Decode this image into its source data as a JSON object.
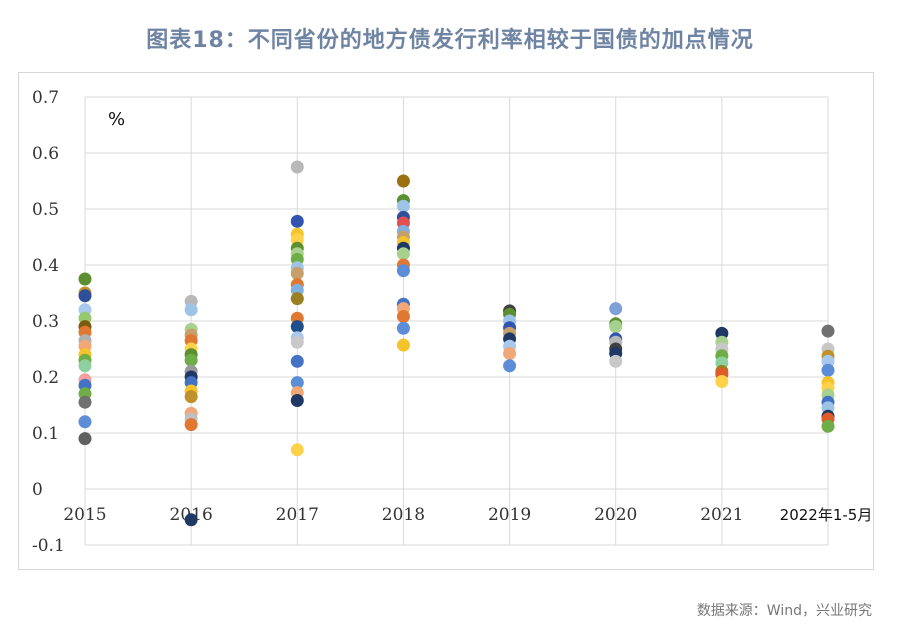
{
  "title": "图表18：不同省份的地方债发行利率相较于国债的加点情况",
  "source": "数据来源：Wind，兴业研究",
  "chart_data": {
    "type": "scatter",
    "unit_label": "%",
    "categories": [
      "2015",
      "2016",
      "2017",
      "2018",
      "2019",
      "2020",
      "2021",
      "2022年1-5月"
    ],
    "y_ticks": [
      "0.7",
      "0.6",
      "0.5",
      "0.4",
      "0.3",
      "0.2",
      "0.1",
      "0",
      "-0.1"
    ],
    "ylim": [
      -0.1,
      0.7
    ],
    "grid": true,
    "points": [
      {
        "x": "2015",
        "y": 0.375,
        "color": "#5b8f2f"
      },
      {
        "x": "2015",
        "y": 0.35,
        "color": "#c0902a"
      },
      {
        "x": "2015",
        "y": 0.345,
        "color": "#2f4f9a"
      },
      {
        "x": "2015",
        "y": 0.32,
        "color": "#a9c8ee"
      },
      {
        "x": "2015",
        "y": 0.305,
        "color": "#98c870"
      },
      {
        "x": "2015",
        "y": 0.29,
        "color": "#7a5c0e"
      },
      {
        "x": "2015",
        "y": 0.28,
        "color": "#e07832"
      },
      {
        "x": "2015",
        "y": 0.265,
        "color": "#b0b0b0"
      },
      {
        "x": "2015",
        "y": 0.255,
        "color": "#f0a878"
      },
      {
        "x": "2015",
        "y": 0.24,
        "color": "#f5c32a"
      },
      {
        "x": "2015",
        "y": 0.23,
        "color": "#70ad47"
      },
      {
        "x": "2015",
        "y": 0.22,
        "color": "#8fd0a0"
      },
      {
        "x": "2015",
        "y": 0.195,
        "color": "#f5a0a0"
      },
      {
        "x": "2015",
        "y": 0.185,
        "color": "#4472c4"
      },
      {
        "x": "2015",
        "y": 0.17,
        "color": "#70ad47"
      },
      {
        "x": "2015",
        "y": 0.155,
        "color": "#707070"
      },
      {
        "x": "2015",
        "y": 0.12,
        "color": "#5b8ed6"
      },
      {
        "x": "2015",
        "y": 0.09,
        "color": "#606060"
      },
      {
        "x": "2016",
        "y": 0.335,
        "color": "#b8b8b8"
      },
      {
        "x": "2016",
        "y": 0.32,
        "color": "#9dc3e6"
      },
      {
        "x": "2016",
        "y": 0.285,
        "color": "#a9d18e"
      },
      {
        "x": "2016",
        "y": 0.275,
        "color": "#c5a06a"
      },
      {
        "x": "2016",
        "y": 0.265,
        "color": "#e07832"
      },
      {
        "x": "2016",
        "y": 0.25,
        "color": "#ffd24a"
      },
      {
        "x": "2016",
        "y": 0.24,
        "color": "#5b8f2f"
      },
      {
        "x": "2016",
        "y": 0.23,
        "color": "#70ad47"
      },
      {
        "x": "2016",
        "y": 0.21,
        "color": "#9a9a9a"
      },
      {
        "x": "2016",
        "y": 0.2,
        "color": "#1f3864"
      },
      {
        "x": "2016",
        "y": 0.19,
        "color": "#4472c4"
      },
      {
        "x": "2016",
        "y": 0.175,
        "color": "#f5c32a"
      },
      {
        "x": "2016",
        "y": 0.165,
        "color": "#c0902a"
      },
      {
        "x": "2016",
        "y": 0.135,
        "color": "#f0a878"
      },
      {
        "x": "2016",
        "y": 0.125,
        "color": "#c0c0c0"
      },
      {
        "x": "2016",
        "y": 0.115,
        "color": "#e07832"
      },
      {
        "x": "2016",
        "y": -0.055,
        "color": "#1f3864"
      },
      {
        "x": "2017",
        "y": 0.575,
        "color": "#b8b8b8"
      },
      {
        "x": "2017",
        "y": 0.478,
        "color": "#2f55b0"
      },
      {
        "x": "2017",
        "y": 0.455,
        "color": "#f5c32a"
      },
      {
        "x": "2017",
        "y": 0.445,
        "color": "#ffd24a"
      },
      {
        "x": "2017",
        "y": 0.43,
        "color": "#5b8f2f"
      },
      {
        "x": "2017",
        "y": 0.42,
        "color": "#a9d18e"
      },
      {
        "x": "2017",
        "y": 0.41,
        "color": "#70ad47"
      },
      {
        "x": "2017",
        "y": 0.395,
        "color": "#9dc3e6"
      },
      {
        "x": "2017",
        "y": 0.385,
        "color": "#c5a06a"
      },
      {
        "x": "2017",
        "y": 0.365,
        "color": "#e07832"
      },
      {
        "x": "2017",
        "y": 0.355,
        "color": "#7fb0e0"
      },
      {
        "x": "2017",
        "y": 0.34,
        "color": "#9a8020"
      },
      {
        "x": "2017",
        "y": 0.305,
        "color": "#e07832"
      },
      {
        "x": "2017",
        "y": 0.29,
        "color": "#1f4e8c"
      },
      {
        "x": "2017",
        "y": 0.27,
        "color": "#a9c8ee"
      },
      {
        "x": "2017",
        "y": 0.262,
        "color": "#c8c8c8"
      },
      {
        "x": "2017",
        "y": 0.228,
        "color": "#4472c4"
      },
      {
        "x": "2017",
        "y": 0.19,
        "color": "#5b8ed6"
      },
      {
        "x": "2017",
        "y": 0.172,
        "color": "#f0a878"
      },
      {
        "x": "2017",
        "y": 0.158,
        "color": "#1f3864"
      },
      {
        "x": "2017",
        "y": 0.07,
        "color": "#ffd24a"
      },
      {
        "x": "2018",
        "y": 0.55,
        "color": "#9a7010"
      },
      {
        "x": "2018",
        "y": 0.515,
        "color": "#5b8f2f"
      },
      {
        "x": "2018",
        "y": 0.505,
        "color": "#9dc3e6"
      },
      {
        "x": "2018",
        "y": 0.485,
        "color": "#2f4f9a"
      },
      {
        "x": "2018",
        "y": 0.475,
        "color": "#e05050"
      },
      {
        "x": "2018",
        "y": 0.46,
        "color": "#7fb0e0"
      },
      {
        "x": "2018",
        "y": 0.45,
        "color": "#c5a06a"
      },
      {
        "x": "2018",
        "y": 0.44,
        "color": "#f5c32a"
      },
      {
        "x": "2018",
        "y": 0.43,
        "color": "#1f3864"
      },
      {
        "x": "2018",
        "y": 0.42,
        "color": "#a9d18e"
      },
      {
        "x": "2018",
        "y": 0.4,
        "color": "#e07832"
      },
      {
        "x": "2018",
        "y": 0.39,
        "color": "#5b8ed6"
      },
      {
        "x": "2018",
        "y": 0.33,
        "color": "#4472c4"
      },
      {
        "x": "2018",
        "y": 0.322,
        "color": "#f0a878"
      },
      {
        "x": "2018",
        "y": 0.308,
        "color": "#e07832"
      },
      {
        "x": "2018",
        "y": 0.287,
        "color": "#5b8ed6"
      },
      {
        "x": "2018",
        "y": 0.257,
        "color": "#f5c32a"
      },
      {
        "x": "2019",
        "y": 0.318,
        "color": "#404040"
      },
      {
        "x": "2019",
        "y": 0.312,
        "color": "#5b8f2f"
      },
      {
        "x": "2019",
        "y": 0.3,
        "color": "#9dc3e6"
      },
      {
        "x": "2019",
        "y": 0.288,
        "color": "#2f55b0"
      },
      {
        "x": "2019",
        "y": 0.278,
        "color": "#c5a06a"
      },
      {
        "x": "2019",
        "y": 0.268,
        "color": "#1f3864"
      },
      {
        "x": "2019",
        "y": 0.255,
        "color": "#a9c8ee"
      },
      {
        "x": "2019",
        "y": 0.242,
        "color": "#f0a878"
      },
      {
        "x": "2019",
        "y": 0.22,
        "color": "#5b8ed6"
      },
      {
        "x": "2020",
        "y": 0.322,
        "color": "#7f9fd8"
      },
      {
        "x": "2020",
        "y": 0.295,
        "color": "#5b8f2f"
      },
      {
        "x": "2020",
        "y": 0.29,
        "color": "#a9d18e"
      },
      {
        "x": "2020",
        "y": 0.268,
        "color": "#2f55b0"
      },
      {
        "x": "2020",
        "y": 0.262,
        "color": "#b8b8b8"
      },
      {
        "x": "2020",
        "y": 0.25,
        "color": "#404040"
      },
      {
        "x": "2020",
        "y": 0.242,
        "color": "#1f3864"
      },
      {
        "x": "2020",
        "y": 0.228,
        "color": "#c8c8c8"
      },
      {
        "x": "2021",
        "y": 0.278,
        "color": "#1f3864"
      },
      {
        "x": "2021",
        "y": 0.262,
        "color": "#a9d18e"
      },
      {
        "x": "2021",
        "y": 0.25,
        "color": "#c8c8c8"
      },
      {
        "x": "2021",
        "y": 0.238,
        "color": "#70ad47"
      },
      {
        "x": "2021",
        "y": 0.225,
        "color": "#8fd0a0"
      },
      {
        "x": "2021",
        "y": 0.21,
        "color": "#9a8020"
      },
      {
        "x": "2021",
        "y": 0.205,
        "color": "#e05a2a"
      },
      {
        "x": "2021",
        "y": 0.192,
        "color": "#ffd24a"
      },
      {
        "x": "2022年1-5月",
        "y": 0.282,
        "color": "#707070"
      },
      {
        "x": "2022年1-5月",
        "y": 0.25,
        "color": "#c8c8c8"
      },
      {
        "x": "2022年1-5月",
        "y": 0.237,
        "color": "#c0902a"
      },
      {
        "x": "2022年1-5月",
        "y": 0.228,
        "color": "#a9c8ee"
      },
      {
        "x": "2022年1-5月",
        "y": 0.212,
        "color": "#5b8ed6"
      },
      {
        "x": "2022年1-5月",
        "y": 0.19,
        "color": "#f5c32a"
      },
      {
        "x": "2022年1-5月",
        "y": 0.18,
        "color": "#ffd24a"
      },
      {
        "x": "2022年1-5月",
        "y": 0.168,
        "color": "#a9d18e"
      },
      {
        "x": "2022年1-5月",
        "y": 0.155,
        "color": "#4472c4"
      },
      {
        "x": "2022年1-5月",
        "y": 0.145,
        "color": "#9dc3e6"
      },
      {
        "x": "2022年1-5月",
        "y": 0.13,
        "color": "#1f3864"
      },
      {
        "x": "2022年1-5月",
        "y": 0.125,
        "color": "#e05a2a"
      },
      {
        "x": "2022年1-5月",
        "y": 0.112,
        "color": "#70ad47"
      }
    ]
  }
}
